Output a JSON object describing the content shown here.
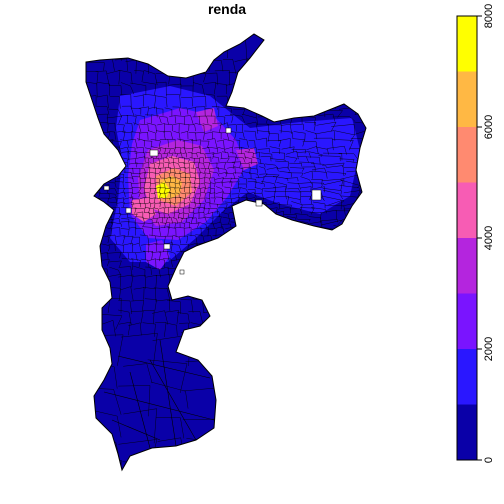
{
  "chart_data": {
    "type": "choropleth",
    "title": "renda",
    "variable": "renda",
    "legend": {
      "placement": "right",
      "orientation": "vertical",
      "breaks": [
        0,
        1000,
        2000,
        3000,
        4000,
        5000,
        6000,
        7000,
        8000
      ],
      "colors": [
        "#0A00A8",
        "#2A17FF",
        "#7A14FF",
        "#B425DE",
        "#F75CB4",
        "#FF8A70",
        "#FFB844",
        "#FFFF00"
      ],
      "tick_values": [
        0,
        2000,
        4000,
        6000,
        8000
      ],
      "tick_labels": [
        "0",
        "2000",
        "4000",
        "6000",
        "8000"
      ]
    },
    "region_summary": [
      {
        "area": "periphery and far south",
        "class_index": 0
      },
      {
        "area": "north and east zones",
        "class_index": 1
      },
      {
        "area": "inner ring around centre",
        "class_index": 2
      },
      {
        "area": "central-west core",
        "class_index": 4
      },
      {
        "area": "richest central cells",
        "class_index": 7
      }
    ]
  }
}
